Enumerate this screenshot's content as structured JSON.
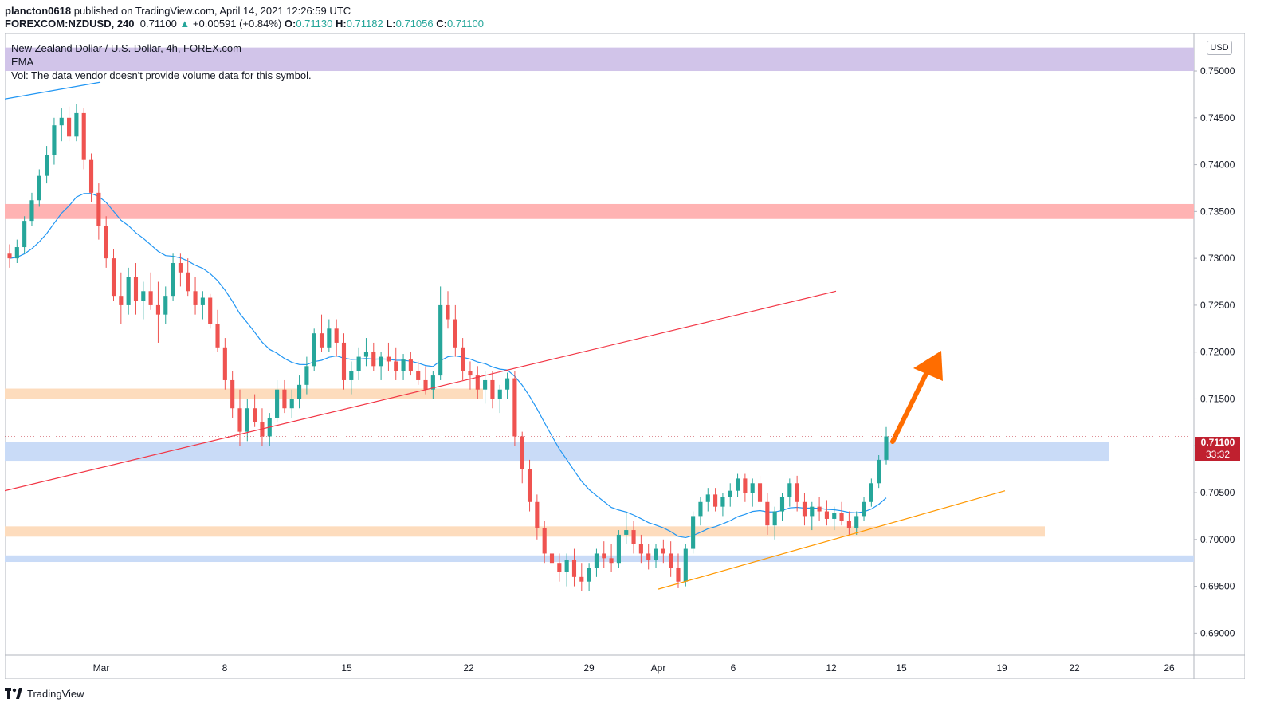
{
  "header": {
    "publisher": "plancton0618",
    "published_text": "published on TradingView.com, April 14, 2021 12:26:59 UTC",
    "symbol": "FOREXCOM:NZDUSD, 240",
    "last": "0.71100",
    "change": "+0.00591 (+0.84%)",
    "o_label": "O:",
    "o": "0.71130",
    "h_label": "H:",
    "h": "0.71182",
    "l_label": "L:",
    "l": "0.71056",
    "c_label": "C:",
    "c": "0.71100"
  },
  "legend": {
    "title": "New Zealand Dollar / U.S. Dollar, 4h, FOREX.com",
    "ema": "EMA",
    "vol": "Vol: The data vendor doesn't provide volume data for this symbol."
  },
  "currency_badge": "USD",
  "price_tag": {
    "price": "0.71100",
    "countdown": "33:32"
  },
  "footer": {
    "brand": "TradingView"
  },
  "colors": {
    "up": "#26a69a",
    "down": "#ef5350",
    "ema": "#2196f3",
    "purple_zone": "#d1c4e9",
    "red_zone": "#ffb3b3",
    "orange_zone": "#fddcbd",
    "blue_zone": "#c9dbf7",
    "red_trend": "#f23645",
    "orange_trend": "#ff9800",
    "arrow": "#ff6d00",
    "price_tag": "#c0202f"
  },
  "chart_data": {
    "type": "candlestick",
    "title": "New Zealand Dollar / U.S. Dollar, 4h, FOREX.com",
    "y_ticks": [
      "0.75000",
      "0.74500",
      "0.74000",
      "0.73500",
      "0.73000",
      "0.72500",
      "0.72000",
      "0.71500",
      "0.71000",
      "0.70500",
      "0.70000",
      "0.69500",
      "0.69000"
    ],
    "x_ticks": [
      "Mar",
      "8",
      "15",
      "22",
      "29",
      "Apr",
      "6",
      "12",
      "15",
      "19",
      "22",
      "26"
    ],
    "ylim": [
      0.6885,
      0.754
    ],
    "ohlc_4h": [
      [
        0.7305,
        0.7315,
        0.729,
        0.73
      ],
      [
        0.73,
        0.732,
        0.7295,
        0.7312
      ],
      [
        0.7312,
        0.7345,
        0.7305,
        0.734
      ],
      [
        0.734,
        0.737,
        0.7335,
        0.7362
      ],
      [
        0.7362,
        0.7395,
        0.7355,
        0.7388
      ],
      [
        0.7388,
        0.742,
        0.738,
        0.741
      ],
      [
        0.741,
        0.745,
        0.74,
        0.7442
      ],
      [
        0.7442,
        0.746,
        0.7425,
        0.745
      ],
      [
        0.745,
        0.7462,
        0.7425,
        0.743
      ],
      [
        0.743,
        0.7465,
        0.7425,
        0.7455
      ],
      [
        0.7455,
        0.746,
        0.7395,
        0.7405
      ],
      [
        0.7405,
        0.7412,
        0.736,
        0.737
      ],
      [
        0.737,
        0.738,
        0.732,
        0.7335
      ],
      [
        0.7335,
        0.7345,
        0.729,
        0.73
      ],
      [
        0.73,
        0.731,
        0.7255,
        0.726
      ],
      [
        0.726,
        0.7285,
        0.723,
        0.725
      ],
      [
        0.725,
        0.729,
        0.724,
        0.728
      ],
      [
        0.728,
        0.7295,
        0.724,
        0.7255
      ],
      [
        0.7255,
        0.7275,
        0.7235,
        0.7265
      ],
      [
        0.7265,
        0.7285,
        0.7245,
        0.725
      ],
      [
        0.725,
        0.7275,
        0.721,
        0.724
      ],
      [
        0.724,
        0.727,
        0.723,
        0.726
      ],
      [
        0.726,
        0.7305,
        0.7255,
        0.7295
      ],
      [
        0.7295,
        0.7305,
        0.727,
        0.7285
      ],
      [
        0.7285,
        0.73,
        0.726,
        0.7265
      ],
      [
        0.7265,
        0.728,
        0.724,
        0.725
      ],
      [
        0.725,
        0.7265,
        0.7235,
        0.7258
      ],
      [
        0.7258,
        0.7262,
        0.7225,
        0.723
      ],
      [
        0.723,
        0.7245,
        0.72,
        0.7205
      ],
      [
        0.7205,
        0.7215,
        0.716,
        0.717
      ],
      [
        0.717,
        0.718,
        0.713,
        0.714
      ],
      [
        0.714,
        0.716,
        0.71,
        0.7115
      ],
      [
        0.7115,
        0.715,
        0.7105,
        0.714
      ],
      [
        0.714,
        0.7155,
        0.712,
        0.7125
      ],
      [
        0.7125,
        0.714,
        0.71,
        0.711
      ],
      [
        0.711,
        0.7135,
        0.71,
        0.713
      ],
      [
        0.713,
        0.717,
        0.7125,
        0.716
      ],
      [
        0.716,
        0.717,
        0.7135,
        0.714
      ],
      [
        0.714,
        0.716,
        0.713,
        0.715
      ],
      [
        0.715,
        0.7175,
        0.714,
        0.7165
      ],
      [
        0.7165,
        0.7195,
        0.7155,
        0.7185
      ],
      [
        0.7185,
        0.7225,
        0.718,
        0.722
      ],
      [
        0.722,
        0.724,
        0.72,
        0.7205
      ],
      [
        0.7205,
        0.7235,
        0.72,
        0.7225
      ],
      [
        0.7225,
        0.7235,
        0.7195,
        0.721
      ],
      [
        0.721,
        0.722,
        0.716,
        0.717
      ],
      [
        0.717,
        0.719,
        0.7155,
        0.718
      ],
      [
        0.718,
        0.7205,
        0.717,
        0.7195
      ],
      [
        0.7195,
        0.7215,
        0.7185,
        0.72
      ],
      [
        0.72,
        0.721,
        0.718,
        0.7185
      ],
      [
        0.7185,
        0.72,
        0.717,
        0.7195
      ],
      [
        0.7195,
        0.721,
        0.718,
        0.719
      ],
      [
        0.719,
        0.7205,
        0.717,
        0.718
      ],
      [
        0.718,
        0.7198,
        0.717,
        0.7192
      ],
      [
        0.7192,
        0.72,
        0.7175,
        0.718
      ],
      [
        0.718,
        0.719,
        0.7165,
        0.717
      ],
      [
        0.717,
        0.7185,
        0.7155,
        0.716
      ],
      [
        0.716,
        0.718,
        0.715,
        0.7175
      ],
      [
        0.7175,
        0.727,
        0.717,
        0.725
      ],
      [
        0.725,
        0.7265,
        0.7225,
        0.7235
      ],
      [
        0.7235,
        0.725,
        0.7195,
        0.7205
      ],
      [
        0.7205,
        0.7215,
        0.717,
        0.718
      ],
      [
        0.718,
        0.719,
        0.716,
        0.7175
      ],
      [
        0.7175,
        0.7185,
        0.715,
        0.716
      ],
      [
        0.716,
        0.718,
        0.7145,
        0.717
      ],
      [
        0.717,
        0.718,
        0.714,
        0.715
      ],
      [
        0.715,
        0.7165,
        0.7135,
        0.716
      ],
      [
        0.716,
        0.7178,
        0.715,
        0.7172
      ],
      [
        0.7172,
        0.718,
        0.71,
        0.711
      ],
      [
        0.711,
        0.7115,
        0.706,
        0.7075
      ],
      [
        0.7075,
        0.7085,
        0.703,
        0.704
      ],
      [
        0.704,
        0.7048,
        0.7,
        0.7012
      ],
      [
        0.7012,
        0.702,
        0.6975,
        0.6985
      ],
      [
        0.6985,
        0.6995,
        0.696,
        0.6975
      ],
      [
        0.6975,
        0.6985,
        0.6955,
        0.6965
      ],
      [
        0.6965,
        0.6985,
        0.695,
        0.6978
      ],
      [
        0.6978,
        0.699,
        0.695,
        0.696
      ],
      [
        0.696,
        0.6975,
        0.6945,
        0.6955
      ],
      [
        0.6955,
        0.6975,
        0.6945,
        0.697
      ],
      [
        0.697,
        0.699,
        0.696,
        0.6985
      ],
      [
        0.6985,
        0.6998,
        0.697,
        0.698
      ],
      [
        0.698,
        0.6995,
        0.6965,
        0.6975
      ],
      [
        0.6975,
        0.701,
        0.697,
        0.7005
      ],
      [
        0.7005,
        0.703,
        0.6995,
        0.701
      ],
      [
        0.701,
        0.702,
        0.6985,
        0.6995
      ],
      [
        0.6995,
        0.7005,
        0.6975,
        0.6985
      ],
      [
        0.6985,
        0.6995,
        0.6968,
        0.6978
      ],
      [
        0.6978,
        0.6995,
        0.697,
        0.699
      ],
      [
        0.699,
        0.7,
        0.6975,
        0.6985
      ],
      [
        0.6985,
        0.6998,
        0.696,
        0.697
      ],
      [
        0.697,
        0.6985,
        0.6948,
        0.6955
      ],
      [
        0.6955,
        0.6995,
        0.695,
        0.699
      ],
      [
        0.699,
        0.703,
        0.6985,
        0.7025
      ],
      [
        0.7025,
        0.7045,
        0.7015,
        0.704
      ],
      [
        0.704,
        0.7055,
        0.703,
        0.7048
      ],
      [
        0.7048,
        0.7055,
        0.703,
        0.7035
      ],
      [
        0.7035,
        0.705,
        0.7025,
        0.7045
      ],
      [
        0.7045,
        0.706,
        0.7035,
        0.7052
      ],
      [
        0.7052,
        0.707,
        0.7045,
        0.7065
      ],
      [
        0.7065,
        0.707,
        0.704,
        0.705
      ],
      [
        0.705,
        0.7065,
        0.7035,
        0.706
      ],
      [
        0.706,
        0.7068,
        0.703,
        0.704
      ],
      [
        0.704,
        0.705,
        0.7005,
        0.7015
      ],
      [
        0.7015,
        0.7035,
        0.7,
        0.703
      ],
      [
        0.703,
        0.705,
        0.702,
        0.7045
      ],
      [
        0.7045,
        0.7065,
        0.7035,
        0.706
      ],
      [
        0.706,
        0.7068,
        0.703,
        0.704
      ],
      [
        0.704,
        0.705,
        0.7015,
        0.7025
      ],
      [
        0.7025,
        0.704,
        0.701,
        0.7035
      ],
      [
        0.7035,
        0.7045,
        0.702,
        0.703
      ],
      [
        0.703,
        0.7042,
        0.7015,
        0.7022
      ],
      [
        0.7022,
        0.7035,
        0.701,
        0.7028
      ],
      [
        0.7028,
        0.704,
        0.7015,
        0.702
      ],
      [
        0.702,
        0.703,
        0.7005,
        0.7012
      ],
      [
        0.7012,
        0.703,
        0.7005,
        0.7025
      ],
      [
        0.7025,
        0.7045,
        0.702,
        0.704
      ],
      [
        0.704,
        0.7065,
        0.7035,
        0.706
      ],
      [
        0.706,
        0.709,
        0.7055,
        0.7085
      ],
      [
        0.7085,
        0.712,
        0.708,
        0.711
      ]
    ]
  }
}
